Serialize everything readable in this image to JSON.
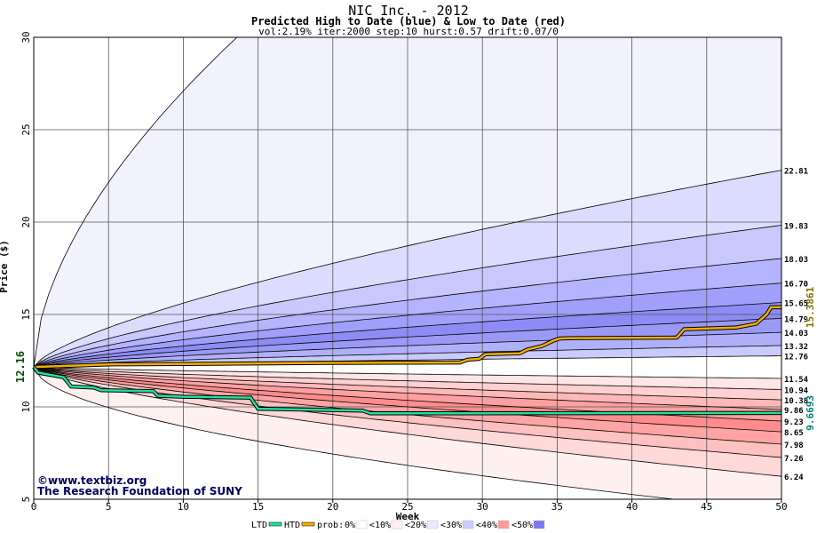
{
  "title": "NIC Inc. - 2012",
  "subtitle": "Predicted High to Date (blue) &  Low to Date (red)",
  "params": "vol:2.19% iter:2000 step:10 hurst:0.57 drift:0.07/0",
  "watermark": {
    "line1": "©www.textbiz.org",
    "line2": "The Research Foundation of SUNY"
  },
  "legend": {
    "ltd": "LTD",
    "htd": "HTD",
    "prob": "prob:",
    "items": [
      "0%",
      "<10%",
      "<20%",
      "<30%",
      "<40%",
      "<50%"
    ],
    "colors": [
      "#ffffff",
      "#fff0f0",
      "#ebebff",
      "#ccccff",
      "#ff9999",
      "#7777ee"
    ]
  },
  "colors": {
    "ltd_line": "#20e0a0",
    "htd_line": "#f0b000",
    "ltd_label": "#008080",
    "htd_label": "#807000"
  },
  "chart_data": {
    "type": "area",
    "title": "NIC Inc. - 2012",
    "xlabel": "Week",
    "ylabel": "Price ($)",
    "xlim": [
      0,
      50
    ],
    "ylim": [
      5,
      30
    ],
    "xticks": [
      0,
      5,
      10,
      15,
      20,
      25,
      30,
      35,
      40,
      45,
      50
    ],
    "yticks": [
      5,
      10,
      15,
      20,
      25,
      30
    ],
    "grid": true,
    "start_price": 12.16,
    "start_label": "12.16",
    "high_percentile_end_values": [
      {
        "label": "22.81",
        "value": 22.81
      },
      {
        "label": "19.83",
        "value": 19.83
      },
      {
        "label": "18.03",
        "value": 18.03
      },
      {
        "label": "16.70",
        "value": 16.7
      },
      {
        "label": "15.65",
        "value": 15.65
      },
      {
        "label": "14.79",
        "value": 14.79
      },
      {
        "label": "14.03",
        "value": 14.03
      },
      {
        "label": "13.32",
        "value": 13.32
      },
      {
        "label": "12.76",
        "value": 12.76
      }
    ],
    "low_percentile_end_values": [
      {
        "label": "11.54",
        "value": 11.54
      },
      {
        "label": "10.94",
        "value": 10.94
      },
      {
        "label": "10.38",
        "value": 10.38
      },
      {
        "label": "9.86",
        "value": 9.86
      },
      {
        "label": "9.23",
        "value": 9.23
      },
      {
        "label": "8.65",
        "value": 8.65
      },
      {
        "label": "7.98",
        "value": 7.98
      },
      {
        "label": "7.26",
        "value": 7.26
      },
      {
        "label": "6.24",
        "value": 6.24
      }
    ],
    "series": [
      {
        "name": "HTD",
        "end_label": "15.3861",
        "points": [
          [
            0,
            12.16
          ],
          [
            5,
            12.3
          ],
          [
            10,
            12.32
          ],
          [
            20,
            12.38
          ],
          [
            28.5,
            12.4
          ],
          [
            29,
            12.55
          ],
          [
            29.8,
            12.6
          ],
          [
            30.2,
            12.85
          ],
          [
            32.5,
            12.9
          ],
          [
            33,
            13.1
          ],
          [
            34,
            13.3
          ],
          [
            34.8,
            13.6
          ],
          [
            35.2,
            13.7
          ],
          [
            36,
            13.72
          ],
          [
            43,
            13.75
          ],
          [
            43.5,
            14.2
          ],
          [
            47,
            14.3
          ],
          [
            48.3,
            14.5
          ],
          [
            49,
            15.0
          ],
          [
            49.3,
            15.39
          ],
          [
            50,
            15.39
          ]
        ]
      },
      {
        "name": "LTD",
        "end_label": "9.6693",
        "points": [
          [
            0,
            12.16
          ],
          [
            0.3,
            11.85
          ],
          [
            2,
            11.6
          ],
          [
            2.5,
            11.1
          ],
          [
            4,
            11.05
          ],
          [
            4.5,
            10.9
          ],
          [
            8,
            10.85
          ],
          [
            8.3,
            10.6
          ],
          [
            10,
            10.55
          ],
          [
            14.5,
            10.5
          ],
          [
            15,
            9.9
          ],
          [
            22,
            9.8
          ],
          [
            22.5,
            9.65
          ],
          [
            50,
            9.67
          ]
        ]
      }
    ]
  }
}
